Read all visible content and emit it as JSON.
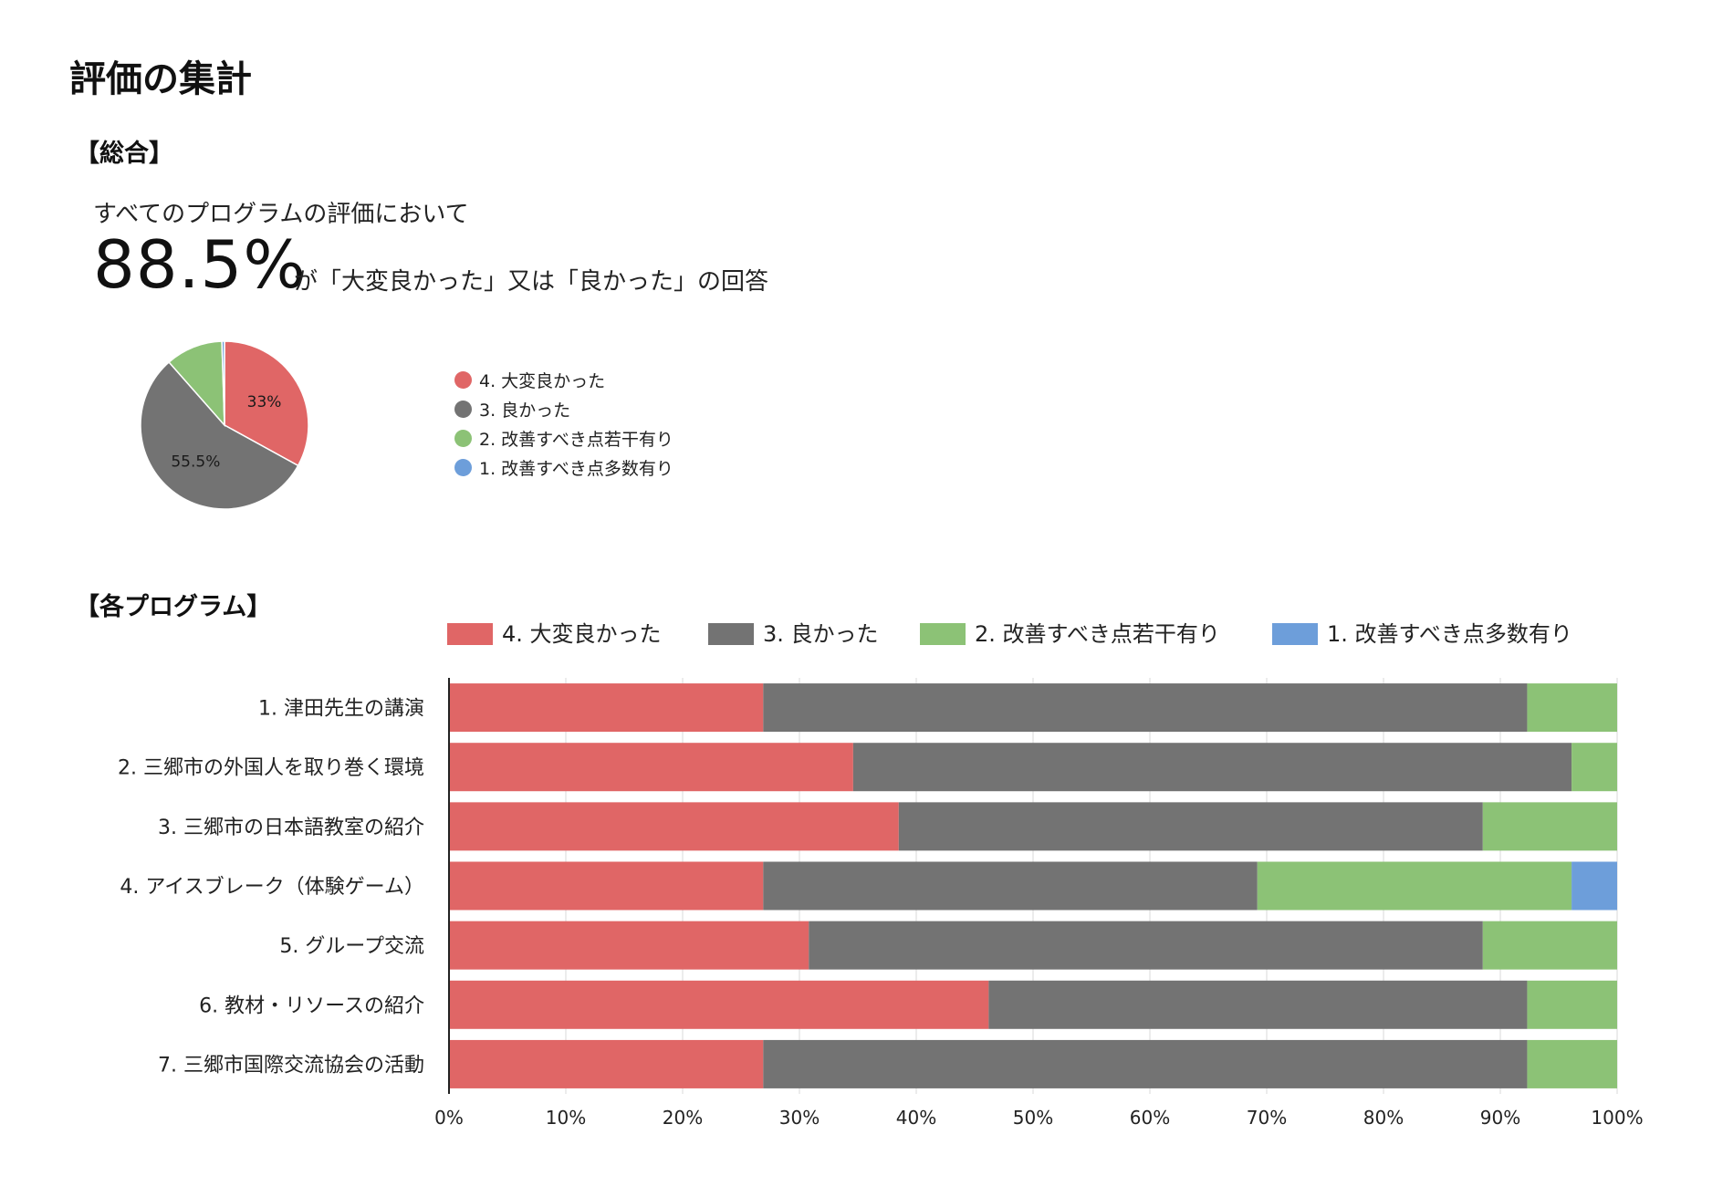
{
  "page": {
    "title": "評価の集計",
    "overall_heading": "【総合】",
    "intro_text": "すべてのプログラムの評価において",
    "big_percent": "88.5%",
    "answer_text": "が「大変良かった」又は「良かった」の回答",
    "programs_heading": "【各プログラム】"
  },
  "chart_data": [
    {
      "type": "pie",
      "categories": [
        "4. 大変良かった",
        "3. 良かった",
        "2. 改善すべき点若干有り",
        "1. 改善すべき点多数有り"
      ],
      "values": [
        33.0,
        55.5,
        11.0,
        0.5
      ],
      "data_labels": [
        "33%",
        "55.5%",
        "",
        ""
      ],
      "colors": [
        "#e06666",
        "#737373",
        "#8cc276",
        "#6d9eda"
      ],
      "legend_position": "right"
    },
    {
      "type": "bar",
      "orientation": "horizontal",
      "stacked": "100%",
      "categories": [
        "1. 津田先生の講演",
        "2. 三郷市の外国人を取り巻く環境",
        "3. 三郷市の日本語教室の紹介",
        "4. アイスブレーク（体験ゲーム）",
        "5. グループ交流",
        "6. 教材・リソースの紹介",
        "7. 三郷市国際交流協会の活動"
      ],
      "series": [
        {
          "name": "4. 大変良かった",
          "color": "#e06666",
          "values": [
            26.9,
            34.6,
            38.5,
            26.9,
            30.8,
            46.2,
            26.9
          ]
        },
        {
          "name": "3. 良かった",
          "color": "#737373",
          "values": [
            65.4,
            61.5,
            50.0,
            42.3,
            57.7,
            46.1,
            65.4
          ]
        },
        {
          "name": "2. 改善すべき点若干有り",
          "color": "#8cc276",
          "values": [
            7.7,
            3.9,
            11.5,
            26.9,
            11.5,
            7.7,
            7.7
          ]
        },
        {
          "name": "1. 改善すべき点多数有り",
          "color": "#6d9eda",
          "values": [
            0,
            0,
            0,
            3.9,
            0,
            0,
            0
          ]
        }
      ],
      "xlim": [
        0,
        100
      ],
      "x_ticks": [
        "0%",
        "10%",
        "20%",
        "30%",
        "40%",
        "50%",
        "60%",
        "70%",
        "80%",
        "90%",
        "100%"
      ],
      "grid": true,
      "legend_position": "top"
    }
  ]
}
